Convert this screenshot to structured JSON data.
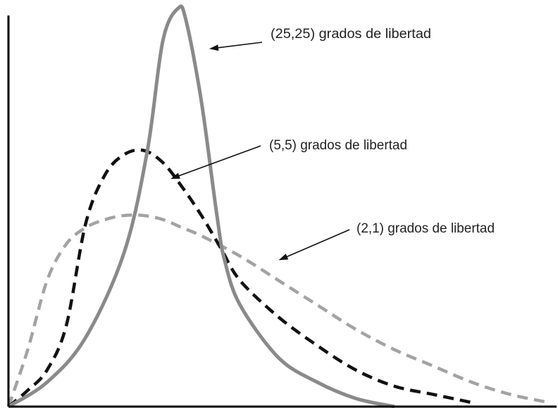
{
  "chart_data": {
    "type": "line",
    "title": "",
    "xlabel": "",
    "ylabel": "",
    "grid": false,
    "legend": "none",
    "series": [
      {
        "name": "(25,25) grados de libertad",
        "color": "#8a8a8a",
        "style": "solid",
        "x": [
          0,
          0.1,
          0.2,
          0.3,
          0.36,
          0.4,
          0.44,
          0.46,
          0.5,
          0.54,
          0.56,
          0.6,
          0.7,
          0.8,
          0.9,
          1.0
        ],
        "y": [
          0,
          0.06,
          0.17,
          0.38,
          0.63,
          0.9,
          0.98,
          0.95,
          0.75,
          0.47,
          0.36,
          0.25,
          0.12,
          0.06,
          0.02,
          0
        ]
      },
      {
        "name": "(5,5) grados de libertad",
        "color": "#111111",
        "style": "dashed",
        "x": [
          0,
          0.05,
          0.1,
          0.15,
          0.2,
          0.25,
          0.3,
          0.35,
          0.4,
          0.45,
          0.5,
          0.55,
          0.6,
          0.7,
          0.8,
          0.9,
          1.0,
          1.1,
          1.2
        ],
        "y": [
          0,
          0.04,
          0.09,
          0.2,
          0.45,
          0.57,
          0.62,
          0.63,
          0.6,
          0.54,
          0.47,
          0.39,
          0.31,
          0.22,
          0.15,
          0.09,
          0.05,
          0.03,
          0.01
        ]
      },
      {
        "name": "(2,1) grados de libertad",
        "color": "#a3a3a3",
        "style": "dashed",
        "x": [
          0,
          0.05,
          0.1,
          0.15,
          0.2,
          0.25,
          0.3,
          0.35,
          0.4,
          0.45,
          0.5,
          0.6,
          0.7,
          0.8,
          0.9,
          1.0,
          1.1,
          1.2,
          1.3,
          1.4
        ],
        "y": [
          0,
          0.14,
          0.31,
          0.4,
          0.44,
          0.46,
          0.47,
          0.47,
          0.46,
          0.44,
          0.42,
          0.37,
          0.31,
          0.25,
          0.19,
          0.14,
          0.1,
          0.06,
          0.03,
          0.01
        ]
      }
    ],
    "annotations": [
      {
        "series": 0,
        "text": "(25,25) grados de libertad",
        "target_x": 0.52,
        "target_y": 0.88
      },
      {
        "series": 1,
        "text": "(5,5) grados de libertad",
        "target_x": 0.42,
        "target_y": 0.56
      },
      {
        "series": 2,
        "text": "(2,1) grados de libertad",
        "target_x": 0.7,
        "target_y": 0.36
      }
    ],
    "xlim": [
      0,
      1.42
    ],
    "ylim": [
      0,
      1.0
    ]
  }
}
